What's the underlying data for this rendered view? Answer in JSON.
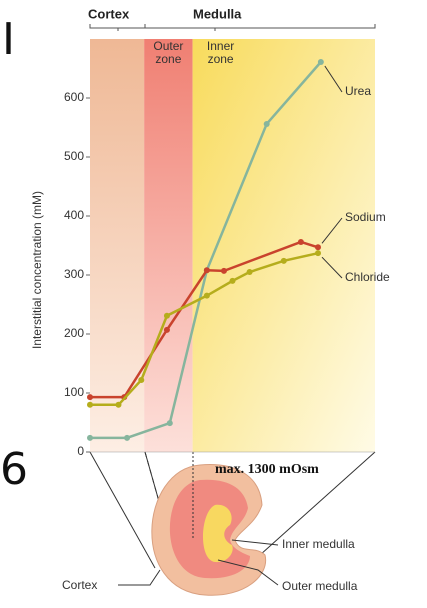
{
  "chart_data": {
    "type": "line",
    "header_left": "Cortex",
    "header_right": "Medulla",
    "ylabel": "Interstitial concentration (mM)",
    "ylim": [
      0,
      700
    ],
    "yticks": [
      0,
      100,
      200,
      300,
      400,
      500,
      600
    ],
    "xlim": [
      0,
      100
    ],
    "regions": [
      {
        "label": "Outer zone",
        "start": 19,
        "end": 36,
        "color": "#f07f72"
      },
      {
        "label": "Inner zone",
        "start": 36,
        "end": 100,
        "color": "#f8db5c"
      }
    ],
    "cortex_color": "#efb895",
    "series": [
      {
        "name": "Urea",
        "color": "#86b59d",
        "x": [
          0,
          13,
          28,
          41,
          62,
          81
        ],
        "values": [
          24,
          24,
          49,
          308,
          556,
          661
        ]
      },
      {
        "name": "Sodium",
        "color": "#c9432d",
        "x": [
          0,
          12,
          27,
          41,
          47,
          74,
          80
        ],
        "values": [
          93,
          93,
          207,
          308,
          307,
          356,
          347
        ]
      },
      {
        "name": "Chloride",
        "color": "#b5ad1c",
        "x": [
          0,
          10,
          18,
          27,
          41,
          50,
          56,
          68,
          80
        ],
        "values": [
          80,
          80,
          122,
          231,
          265,
          290,
          305,
          324,
          337
        ]
      }
    ],
    "annotations": [
      "max. 1300 mOsm",
      "Cortex",
      "Inner medulla",
      "Outer medulla"
    ],
    "margin_marks": [
      "I",
      "6"
    ]
  }
}
